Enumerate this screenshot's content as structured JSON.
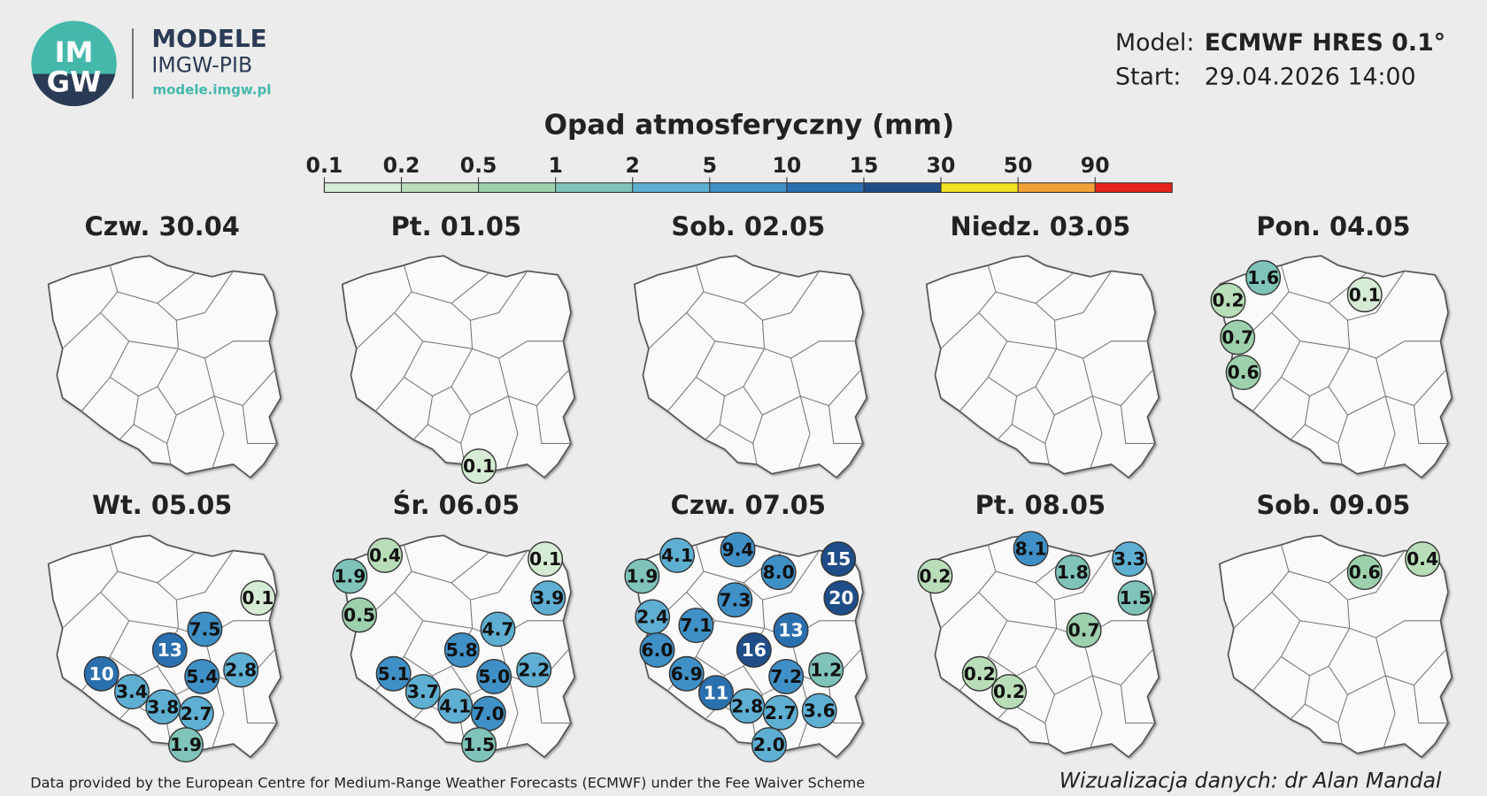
{
  "header": {
    "logo_lines": [
      "IM",
      "GW"
    ],
    "brand": "MODELE",
    "org": "IMGW-PIB",
    "url": "modele.imgw.pl"
  },
  "model": {
    "model_label": "Model:",
    "model": "ECMWF HRES 0.1°",
    "start_label": "Start:",
    "start": "29.04.2026 14:00"
  },
  "legend": {
    "title": "Opad atmosferyczny (mm)",
    "ticks": [
      0.1,
      0.2,
      0.5,
      1,
      2,
      5,
      10,
      15,
      30,
      50,
      90
    ],
    "colors": [
      "#d6ebd3",
      "#b9ddb8",
      "#9dd0ac",
      "#7fc3b9",
      "#5eafd2",
      "#3f90c6",
      "#2b70ae",
      "#1e4d88",
      "#f2e424",
      "#f0a235",
      "#e6231f"
    ]
  },
  "panels": [
    {
      "title": "Czw. 30.04",
      "values": [],
      "value_labels": []
    },
    {
      "title": "Pt. 01.05",
      "values": [
        0.1
      ],
      "value_labels": [
        "0.1"
      ]
    },
    {
      "title": "Sob. 02.05",
      "values": [],
      "value_labels": []
    },
    {
      "title": "Niedz. 03.05",
      "values": [],
      "value_labels": []
    },
    {
      "title": "Pon. 04.05",
      "values": [
        1.6,
        0.2,
        0.1,
        0.7,
        0.6
      ],
      "value_labels": [
        "1.6",
        "0.2",
        "0.1",
        "0.7",
        "0.6"
      ]
    },
    {
      "title": "Wt. 05.05",
      "values": [
        0.1,
        7.5,
        13,
        2.8,
        10,
        5.4,
        3.4,
        3.8,
        2.7,
        1.9
      ],
      "value_labels": [
        "0.1",
        "7.5",
        "13",
        "2.8",
        "10",
        "5.4",
        "3.4",
        "3.8",
        "2.7",
        "1.9"
      ]
    },
    {
      "title": "Śr. 06.05",
      "values": [
        0.4,
        0.1,
        1.9,
        3.9,
        0.5,
        4.7,
        5.8,
        2.2,
        5.1,
        5,
        3.7,
        4.1,
        7,
        1.5
      ],
      "value_labels": [
        "0.4",
        "0.1",
        "1.9",
        "3.9",
        "0.5",
        "4.7",
        "5.8",
        "2.2",
        "5.1",
        "5.0",
        "3.7",
        "4.1",
        "7.0",
        "1.5"
      ]
    },
    {
      "title": "Czw. 07.05",
      "values": [
        4.1,
        9.4,
        15,
        1.9,
        8,
        20,
        7.3,
        2.4,
        7.1,
        13,
        6,
        16,
        1.2,
        6.9,
        7.2,
        11,
        2.8,
        2.7,
        3.6,
        2
      ],
      "value_labels": [
        "4.1",
        "9.4",
        "15",
        "1.9",
        "8.0",
        "20",
        "7.3",
        "2.4",
        "7.1",
        "13",
        "6.0",
        "16",
        "1.2",
        "6.9",
        "7.2",
        "11",
        "2.8",
        "2.7",
        "3.6",
        "2.0"
      ]
    },
    {
      "title": "Pt. 08.05",
      "values": [
        8.1,
        3.3,
        0.2,
        1.8,
        1.5,
        0.7,
        0.2,
        0.2
      ],
      "value_labels": [
        "8.1",
        "3.3",
        "0.2",
        "1.8",
        "1.5",
        "0.7",
        "0.2",
        "0.2"
      ]
    },
    {
      "title": "Sob. 09.05",
      "values": [
        0.6,
        0.4
      ],
      "value_labels": [
        "0.6",
        "0.4"
      ]
    }
  ],
  "footer": {
    "credit": "Data provided by the European Centre for Medium-Range Weather Forecasts (ECMWF) under the Fee Waiver Scheme",
    "author": "Wizualizacja danych: dr Alan Mandal"
  }
}
